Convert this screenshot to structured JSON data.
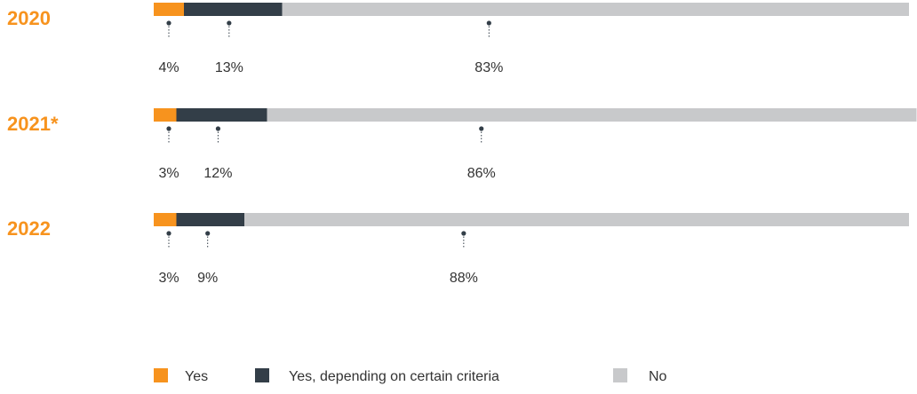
{
  "colors": {
    "yes": "#f7931e",
    "criteria": "#333e48",
    "no": "#c8c9cb",
    "year_label": "#f7931e",
    "text": "#333333",
    "leader": "#333e48"
  },
  "chart_data": {
    "type": "bar",
    "orientation": "horizontal",
    "stacked": "100%",
    "categories": [
      "2020",
      "2021*",
      "2022"
    ],
    "series": [
      {
        "name": "Yes",
        "values": [
          4,
          3,
          3
        ]
      },
      {
        "name": "Yes, depending on certain criteria",
        "values": [
          13,
          12,
          9
        ]
      },
      {
        "name": "No",
        "values": [
          83,
          86,
          88
        ]
      }
    ],
    "value_labels": [
      [
        "4%",
        "13%",
        "83%"
      ],
      [
        "3%",
        "12%",
        "86%"
      ],
      [
        "3%",
        "9%",
        "88%"
      ]
    ],
    "xlim": [
      0,
      100
    ],
    "grid": false,
    "legend_position": "bottom-center"
  }
}
